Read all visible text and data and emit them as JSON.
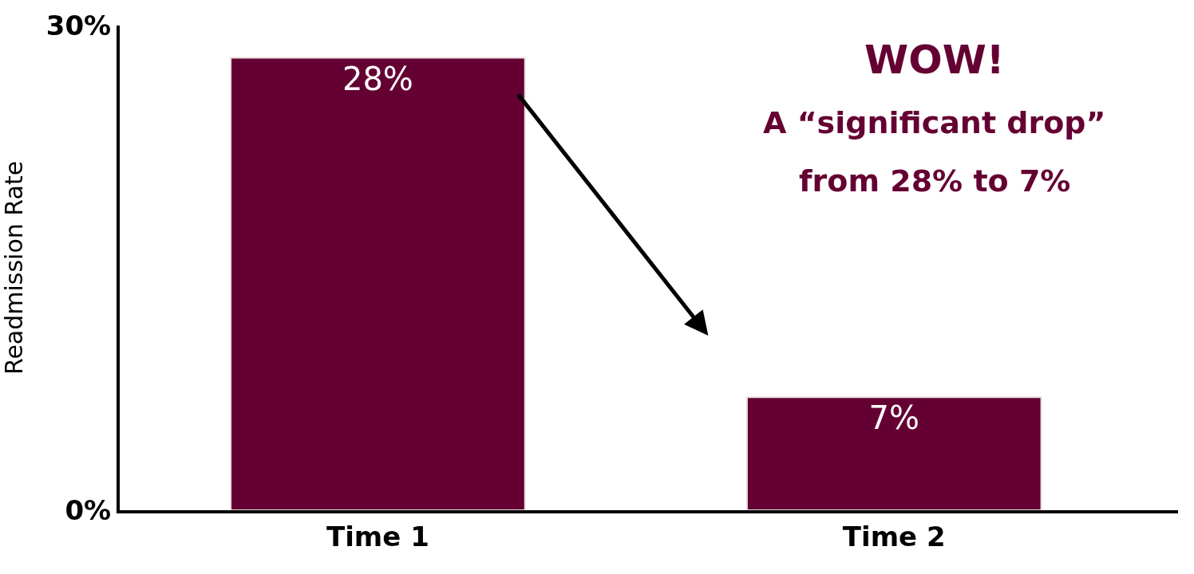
{
  "chart_data": {
    "type": "bar",
    "categories": [
      "Time 1",
      "Time 2"
    ],
    "values": [
      28,
      7
    ],
    "color": "#650033",
    "value_labels": [
      "28%",
      "7%"
    ],
    "ylabel": "Readmission Rate",
    "ylim": [
      0,
      30
    ],
    "yticks": [
      {
        "value": 0,
        "label": "0%"
      },
      {
        "value": 30,
        "label": "30%"
      }
    ],
    "legend": false,
    "annotations": [
      "WOW!",
      "A “significant drop”",
      "from 28% to 7%"
    ]
  }
}
